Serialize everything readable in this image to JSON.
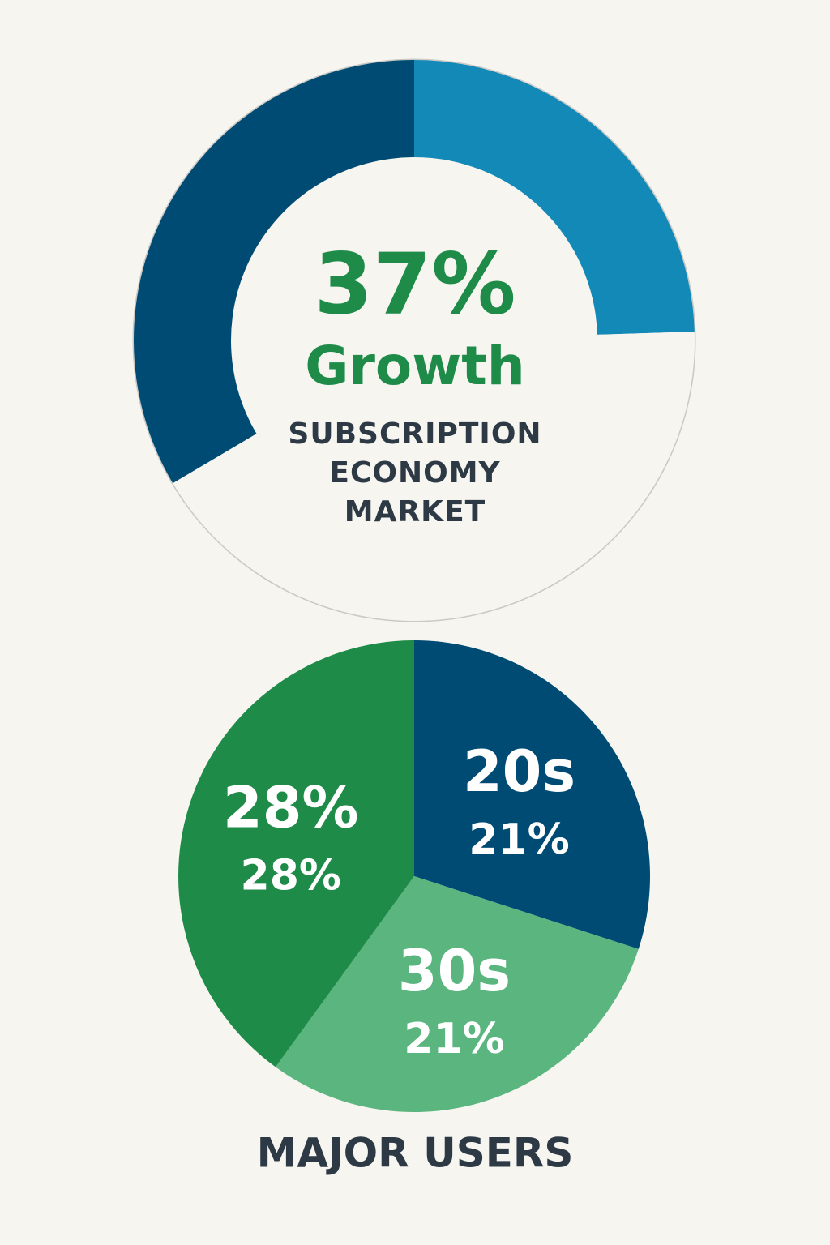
{
  "chart_data": [
    {
      "type": "donut",
      "values": [
        24.5,
        42,
        33.5
      ],
      "colors": [
        "#1389b8",
        "#f7f5f0",
        "#004b73"
      ],
      "center_value": {
        "value": 37,
        "label": "37%"
      },
      "subtitle": "Growth",
      "title": "SUBSCRIPTION ECONOMY MARKET"
    },
    {
      "type": "pie",
      "title": "MAJOR USERS",
      "categories": [
        "20s",
        "30s",
        "28%"
      ],
      "values": [
        21,
        21,
        28
      ],
      "value_labels": [
        "21%",
        "21%",
        "28%"
      ],
      "colors": [
        "#004b73",
        "#5ab57f",
        "#1e8c48"
      ]
    }
  ]
}
